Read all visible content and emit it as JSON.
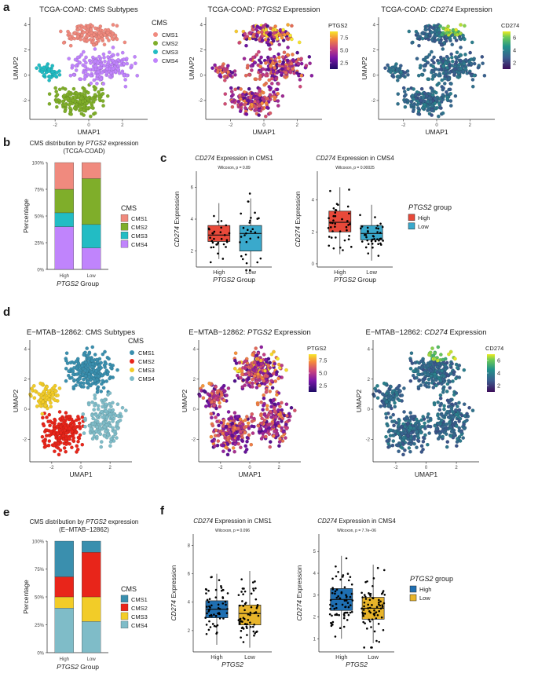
{
  "colors": {
    "cms_tcga": [
      "#f08a7e",
      "#7fae2a",
      "#22bcc4",
      "#c084fc"
    ],
    "cms_emtab": [
      "#3a8fae",
      "#e8251a",
      "#f2cc28",
      "#7fbcc8"
    ],
    "group_tcga": [
      "#e8493a",
      "#3aa9cc"
    ],
    "group_emtab": [
      "#1f6fb2",
      "#e8b42a"
    ]
  },
  "panels": {
    "a": "a",
    "b": "b",
    "c": "c",
    "d": "d",
    "e": "e",
    "f": "f"
  },
  "umap_common": {
    "xlabel": "UMAP1",
    "ylabel": "UMAP2"
  },
  "chart_data": [
    {
      "id": "a1",
      "type": "scatter",
      "title": "TCGA-COAD: CMS Subtypes",
      "xlabel": "UMAP1",
      "ylabel": "UMAP2",
      "xticks": [
        "-2",
        "0",
        "2"
      ],
      "yticks": [
        "4",
        "2",
        "0",
        "-2"
      ],
      "xlim": [
        -3.5,
        3.5
      ],
      "ylim": [
        -3.5,
        4.6
      ],
      "legend": {
        "title": "CMS",
        "entries": [
          "CMS1",
          "CMS2",
          "CMS3",
          "CMS4"
        ]
      },
      "clusters": [
        {
          "name": "CMS1",
          "center": [
            0.2,
            3.2
          ],
          "spread": [
            1.4,
            0.7
          ]
        },
        {
          "name": "CMS2",
          "center": [
            -0.6,
            -2.0
          ],
          "spread": [
            1.4,
            0.9
          ]
        },
        {
          "name": "CMS3",
          "center": [
            -2.5,
            0.3
          ],
          "spread": [
            0.6,
            0.5
          ]
        },
        {
          "name": "CMS4",
          "center": [
            0.9,
            0.6
          ],
          "spread": [
            1.5,
            1.0
          ]
        }
      ]
    },
    {
      "id": "a2",
      "type": "scatter",
      "title_prefix": "TCGA-COAD: ",
      "title_gene": "PTGS2",
      "title_suffix": " Expression",
      "xlabel": "UMAP1",
      "ylabel": "UMAP2",
      "xticks": [
        "-2",
        "0",
        "2"
      ],
      "yticks": [
        "4",
        "2",
        "0",
        "-2"
      ],
      "colorbar": {
        "title": "PTGS2",
        "ticks": [
          "7.5",
          "5.0",
          "2.5"
        ],
        "range": [
          1,
          9
        ]
      }
    },
    {
      "id": "a3",
      "type": "scatter",
      "title_prefix": "TCGA-COAD: ",
      "title_gene": "CD274",
      "title_suffix": " Expression",
      "xlabel": "UMAP1",
      "ylabel": "UMAP2",
      "xticks": [
        "-2",
        "0",
        "2"
      ],
      "yticks": [
        "4",
        "2",
        "0",
        "-2"
      ],
      "colorbar": {
        "title": "CD274",
        "ticks": [
          "6",
          "4",
          "2"
        ],
        "range": [
          0.5,
          6.5
        ]
      }
    },
    {
      "id": "b",
      "type": "bar",
      "title_line1_pre": "CMS distribution by ",
      "title_gene": "PTGS2",
      "title_line1_post": " expression",
      "title_line2": "(TCGA-COAD)",
      "ylabel": "Percentage",
      "xlabel_gene": "PTGS2",
      "xlabel_post": " Group",
      "categories": [
        "High",
        "Low"
      ],
      "yticks": [
        "100%",
        "75%",
        "50%",
        "25%",
        "0%"
      ],
      "legend": {
        "title": "CMS",
        "entries": [
          "CMS1",
          "CMS2",
          "CMS3",
          "CMS4"
        ]
      },
      "series": [
        {
          "name": "CMS1",
          "values": [
            25,
            15
          ]
        },
        {
          "name": "CMS2",
          "values": [
            22,
            43
          ]
        },
        {
          "name": "CMS3",
          "values": [
            13,
            22
          ]
        },
        {
          "name": "CMS4",
          "values": [
            40,
            20
          ]
        }
      ]
    },
    {
      "id": "c1",
      "type": "box",
      "title_gene": "CD274",
      "title_post": " Expression in CMS1",
      "stat": "Wilcoxon, p = 0.89",
      "ylabel_gene": "CD274",
      "ylabel_post": " Expression",
      "xlabel_gene": "PTGS2",
      "xlabel_post": " Group",
      "categories": [
        "High",
        "Low"
      ],
      "yticks": [
        "6",
        "4",
        "2"
      ],
      "ylim": [
        1,
        7
      ],
      "boxes": [
        {
          "group": "High",
          "min": 1.5,
          "q1": 2.6,
          "median": 3.0,
          "q3": 3.6,
          "max": 5.0
        },
        {
          "group": "Low",
          "min": 1.0,
          "q1": 2.0,
          "median": 3.1,
          "q3": 3.6,
          "max": 5.3
        }
      ]
    },
    {
      "id": "c2",
      "type": "box",
      "title_gene": "CD274",
      "title_post": " Expression in CMS4",
      "stat": "Wilcoxon, p = 0.00025",
      "ylabel_gene": "CD274",
      "ylabel_post": " Expression",
      "xlabel_gene": "PTGS2",
      "xlabel_post": " Group",
      "categories": [
        "High",
        "Low"
      ],
      "yticks": [
        "4",
        "2",
        "0"
      ],
      "ylim": [
        -0.2,
        5.8
      ],
      "legend": {
        "title_gene": "PTGS2",
        "title_post": " group",
        "entries": [
          "High",
          "Low"
        ]
      },
      "boxes": [
        {
          "group": "High",
          "min": 0.6,
          "q1": 2.0,
          "median": 2.6,
          "q3": 3.3,
          "max": 4.8
        },
        {
          "group": "Low",
          "min": 0.2,
          "q1": 1.5,
          "median": 1.9,
          "q3": 2.4,
          "max": 3.7
        }
      ]
    },
    {
      "id": "d1",
      "type": "scatter",
      "title": "E−MTAB−12862: CMS Subtypes",
      "xlabel": "UMAP1",
      "ylabel": "UMAP2",
      "xticks": [
        "-2",
        "0",
        "2"
      ],
      "yticks": [
        "4",
        "2",
        "0",
        "-2"
      ],
      "xlim": [
        -3.5,
        3.5
      ],
      "ylim": [
        -3.5,
        4.6
      ],
      "legend": {
        "title": "CMS",
        "entries": [
          "CMS1",
          "CMS2",
          "CMS3",
          "CMS4"
        ]
      },
      "clusters": [
        {
          "name": "CMS1",
          "center": [
            0.6,
            2.6
          ],
          "spread": [
            1.3,
            1.1
          ]
        },
        {
          "name": "CMS2",
          "center": [
            -1.3,
            -1.5
          ],
          "spread": [
            1.1,
            1.1
          ]
        },
        {
          "name": "CMS3",
          "center": [
            -2.4,
            0.8
          ],
          "spread": [
            0.8,
            0.8
          ]
        },
        {
          "name": "CMS4",
          "center": [
            1.6,
            -0.8
          ],
          "spread": [
            1.1,
            1.3
          ]
        }
      ]
    },
    {
      "id": "d2",
      "type": "scatter",
      "title_prefix": "E−MTAB−12862: ",
      "title_gene": "PTGS2",
      "title_suffix": " Expression",
      "xlabel": "UMAP1",
      "ylabel": "UMAP2",
      "xticks": [
        "-2",
        "0",
        "2"
      ],
      "yticks": [
        "4",
        "2",
        "0",
        "-2"
      ],
      "colorbar": {
        "title": "PTGS2",
        "ticks": [
          "7.5",
          "5.0",
          "2.5"
        ],
        "range": [
          1,
          9
        ]
      }
    },
    {
      "id": "d3",
      "type": "scatter",
      "title_prefix": "E−MTAB−12862: ",
      "title_gene": "CD274",
      "title_suffix": " Expression",
      "xlabel": "UMAP1",
      "ylabel": "UMAP2",
      "xticks": [
        "-2",
        "0",
        "2"
      ],
      "yticks": [
        "4",
        "2",
        "0",
        "-2"
      ],
      "colorbar": {
        "title": "CD274",
        "ticks": [
          "6",
          "4",
          "2"
        ],
        "range": [
          0.5,
          6.5
        ]
      }
    },
    {
      "id": "e",
      "type": "bar",
      "title_line1_pre": "CMS distribution by ",
      "title_gene": "PTGS2",
      "title_line1_post": " expression",
      "title_line2": "(E−MTAB−12862)",
      "ylabel": "Percentage",
      "xlabel_gene": "PTGS2",
      "xlabel_post": " Group",
      "categories": [
        "High",
        "Low"
      ],
      "yticks": [
        "100%",
        "75%",
        "50%",
        "25%",
        "0%"
      ],
      "legend": {
        "title": "CMS",
        "entries": [
          "CMS1",
          "CMS2",
          "CMS3",
          "CMS4"
        ]
      },
      "series": [
        {
          "name": "CMS1",
          "values": [
            32,
            10
          ]
        },
        {
          "name": "CMS2",
          "values": [
            18,
            40
          ]
        },
        {
          "name": "CMS3",
          "values": [
            10,
            22
          ]
        },
        {
          "name": "CMS4",
          "values": [
            40,
            28
          ]
        }
      ]
    },
    {
      "id": "f1",
      "type": "box",
      "title_gene": "CD274",
      "title_post": " Expression in CMS1",
      "stat": "Wilcoxon, p = 0.096",
      "ylabel_gene": "CD274",
      "ylabel_post": " Expression",
      "xlabel_gene": "PTGS2",
      "xlabel_post": "",
      "categories": [
        "High",
        "Low"
      ],
      "yticks": [
        "8",
        "6",
        "4",
        "2"
      ],
      "ylim": [
        0.5,
        8.8
      ],
      "boxes": [
        {
          "group": "High",
          "min": 1.0,
          "q1": 2.9,
          "median": 3.5,
          "q3": 4.1,
          "max": 6.0
        },
        {
          "group": "Low",
          "min": 0.8,
          "q1": 2.4,
          "median": 3.2,
          "q3": 3.8,
          "max": 6.2
        }
      ]
    },
    {
      "id": "f2",
      "type": "box",
      "title_gene": "CD274",
      "title_post": " Expression in CMS4",
      "stat": "Wilcoxon, p = 7.7e−06",
      "ylabel_gene": "CD274",
      "ylabel_post": " Expression",
      "xlabel_gene": "PTGS2",
      "xlabel_post": "",
      "categories": [
        "High",
        "Low"
      ],
      "yticks": [
        "5",
        "4",
        "3",
        "2",
        "1"
      ],
      "ylim": [
        0.4,
        5.8
      ],
      "legend": {
        "title_gene": "PTGS2",
        "title_post": " group",
        "entries": [
          "High",
          "Low"
        ]
      },
      "boxes": [
        {
          "group": "High",
          "min": 1.0,
          "q1": 2.3,
          "median": 2.8,
          "q3": 3.3,
          "max": 4.8
        },
        {
          "group": "Low",
          "min": 0.8,
          "q1": 1.9,
          "median": 2.4,
          "q3": 2.9,
          "max": 4.4
        }
      ]
    }
  ]
}
